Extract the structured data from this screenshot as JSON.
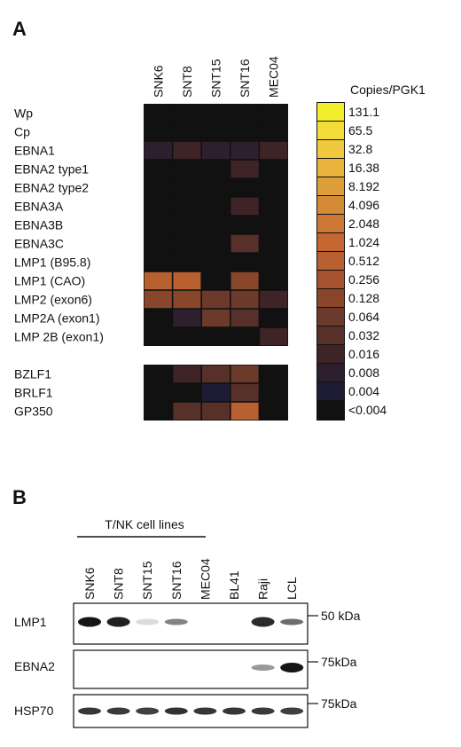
{
  "panel_a": {
    "letter": "A",
    "chart_data": {
      "type": "heatmap",
      "columns": [
        "SNK6",
        "SNT8",
        "SNT15",
        "SNT16",
        "MEC04"
      ],
      "rows": [
        "Wp",
        "Cp",
        "EBNA1",
        "EBNA2 type1",
        "EBNA2 type2",
        "EBNA3A",
        "EBNA3B",
        "EBNA3C",
        "LMP1 (B95.8)",
        "LMP1 (CAO)",
        "LMP2 (exon6)",
        "LMP2A (exon1)",
        "LMP 2B (exon1)",
        "BZLF1",
        "BRLF1",
        "GP350"
      ],
      "row_groups": [
        {
          "rows": [
            "Wp",
            "Cp",
            "EBNA1",
            "EBNA2 type1",
            "EBNA2 type2",
            "EBNA3A",
            "EBNA3B",
            "EBNA3C",
            "LMP1 (B95.8)",
            "LMP1 (CAO)",
            "LMP2 (exon6)",
            "LMP2A (exon1)",
            "LMP 2B (exon1)"
          ]
        },
        {
          "rows": [
            "BZLF1",
            "BRLF1",
            "GP350"
          ]
        }
      ],
      "values": [
        [
          0,
          0,
          0,
          0,
          0
        ],
        [
          0,
          0,
          0,
          0,
          0
        ],
        [
          0.008,
          0.016,
          0.008,
          0.008,
          0.016
        ],
        [
          0,
          0,
          0,
          0.016,
          0
        ],
        [
          0,
          0,
          0,
          0,
          0
        ],
        [
          0,
          0,
          0,
          0.016,
          0
        ],
        [
          0,
          0,
          0,
          0,
          0
        ],
        [
          0,
          0,
          0,
          0.032,
          0
        ],
        [
          0,
          0,
          0,
          0,
          0
        ],
        [
          0.512,
          0.512,
          0,
          0.128,
          0
        ],
        [
          0.128,
          0.128,
          0.064,
          0.064,
          0.016
        ],
        [
          0,
          0.008,
          0.064,
          0.032,
          0
        ],
        [
          0,
          0,
          0,
          0,
          0.016
        ],
        [
          0,
          0.016,
          0.032,
          0.064,
          0
        ],
        [
          0,
          0,
          0.004,
          0.032,
          0
        ],
        [
          0,
          0.032,
          0.032,
          0.512,
          0
        ]
      ],
      "legend": {
        "title": "Copies/PGK1",
        "steps": [
          {
            "label": "131.1",
            "color": "#f3ee2c"
          },
          {
            "label": "65.5",
            "color": "#f4dd3a"
          },
          {
            "label": "32.8",
            "color": "#f1c83e"
          },
          {
            "label": "16.38",
            "color": "#e9b43c"
          },
          {
            "label": "8.192",
            "color": "#de9e39"
          },
          {
            "label": "4.096",
            "color": "#d58a36"
          },
          {
            "label": "2.048",
            "color": "#cd7734"
          },
          {
            "label": "1.024",
            "color": "#c5652f"
          },
          {
            "label": "0.512",
            "color": "#b8602f"
          },
          {
            "label": "0.256",
            "color": "#a4532e"
          },
          {
            "label": "0.128",
            "color": "#8a462b"
          },
          {
            "label": "0.064",
            "color": "#6b3a2a"
          },
          {
            "label": "0.032",
            "color": "#563029"
          },
          {
            "label": "0.016",
            "color": "#3f2427"
          },
          {
            "label": "0.008",
            "color": "#2e1f2f"
          },
          {
            "label": "0.004",
            "color": "#1e1c35"
          },
          {
            "label": "<0.004",
            "color": "#111111"
          }
        ]
      }
    }
  },
  "panel_b": {
    "letter": "B",
    "group_label": "T/NK cell lines",
    "lanes": [
      "SNK6",
      "SNT8",
      "SNT15",
      "SNT16",
      "MEC04",
      "BL41",
      "Raji",
      "LCL"
    ],
    "group_lanes": [
      "SNK6",
      "SNT8",
      "SNT15",
      "SNT16",
      "MEC04"
    ],
    "blots": [
      {
        "name": "LMP1",
        "marker": "50 kDa",
        "intensities": [
          0.95,
          0.9,
          0.05,
          0.45,
          0,
          0,
          0.85,
          0.55
        ]
      },
      {
        "name": "EBNA2",
        "marker": "75kDa",
        "intensities": [
          0,
          0,
          0,
          0,
          0,
          0,
          0.35,
          0.95
        ]
      },
      {
        "name": "HSP70",
        "marker": "75kDa",
        "intensities": [
          0.8,
          0.78,
          0.75,
          0.82,
          0.8,
          0.8,
          0.78,
          0.76
        ]
      }
    ]
  }
}
